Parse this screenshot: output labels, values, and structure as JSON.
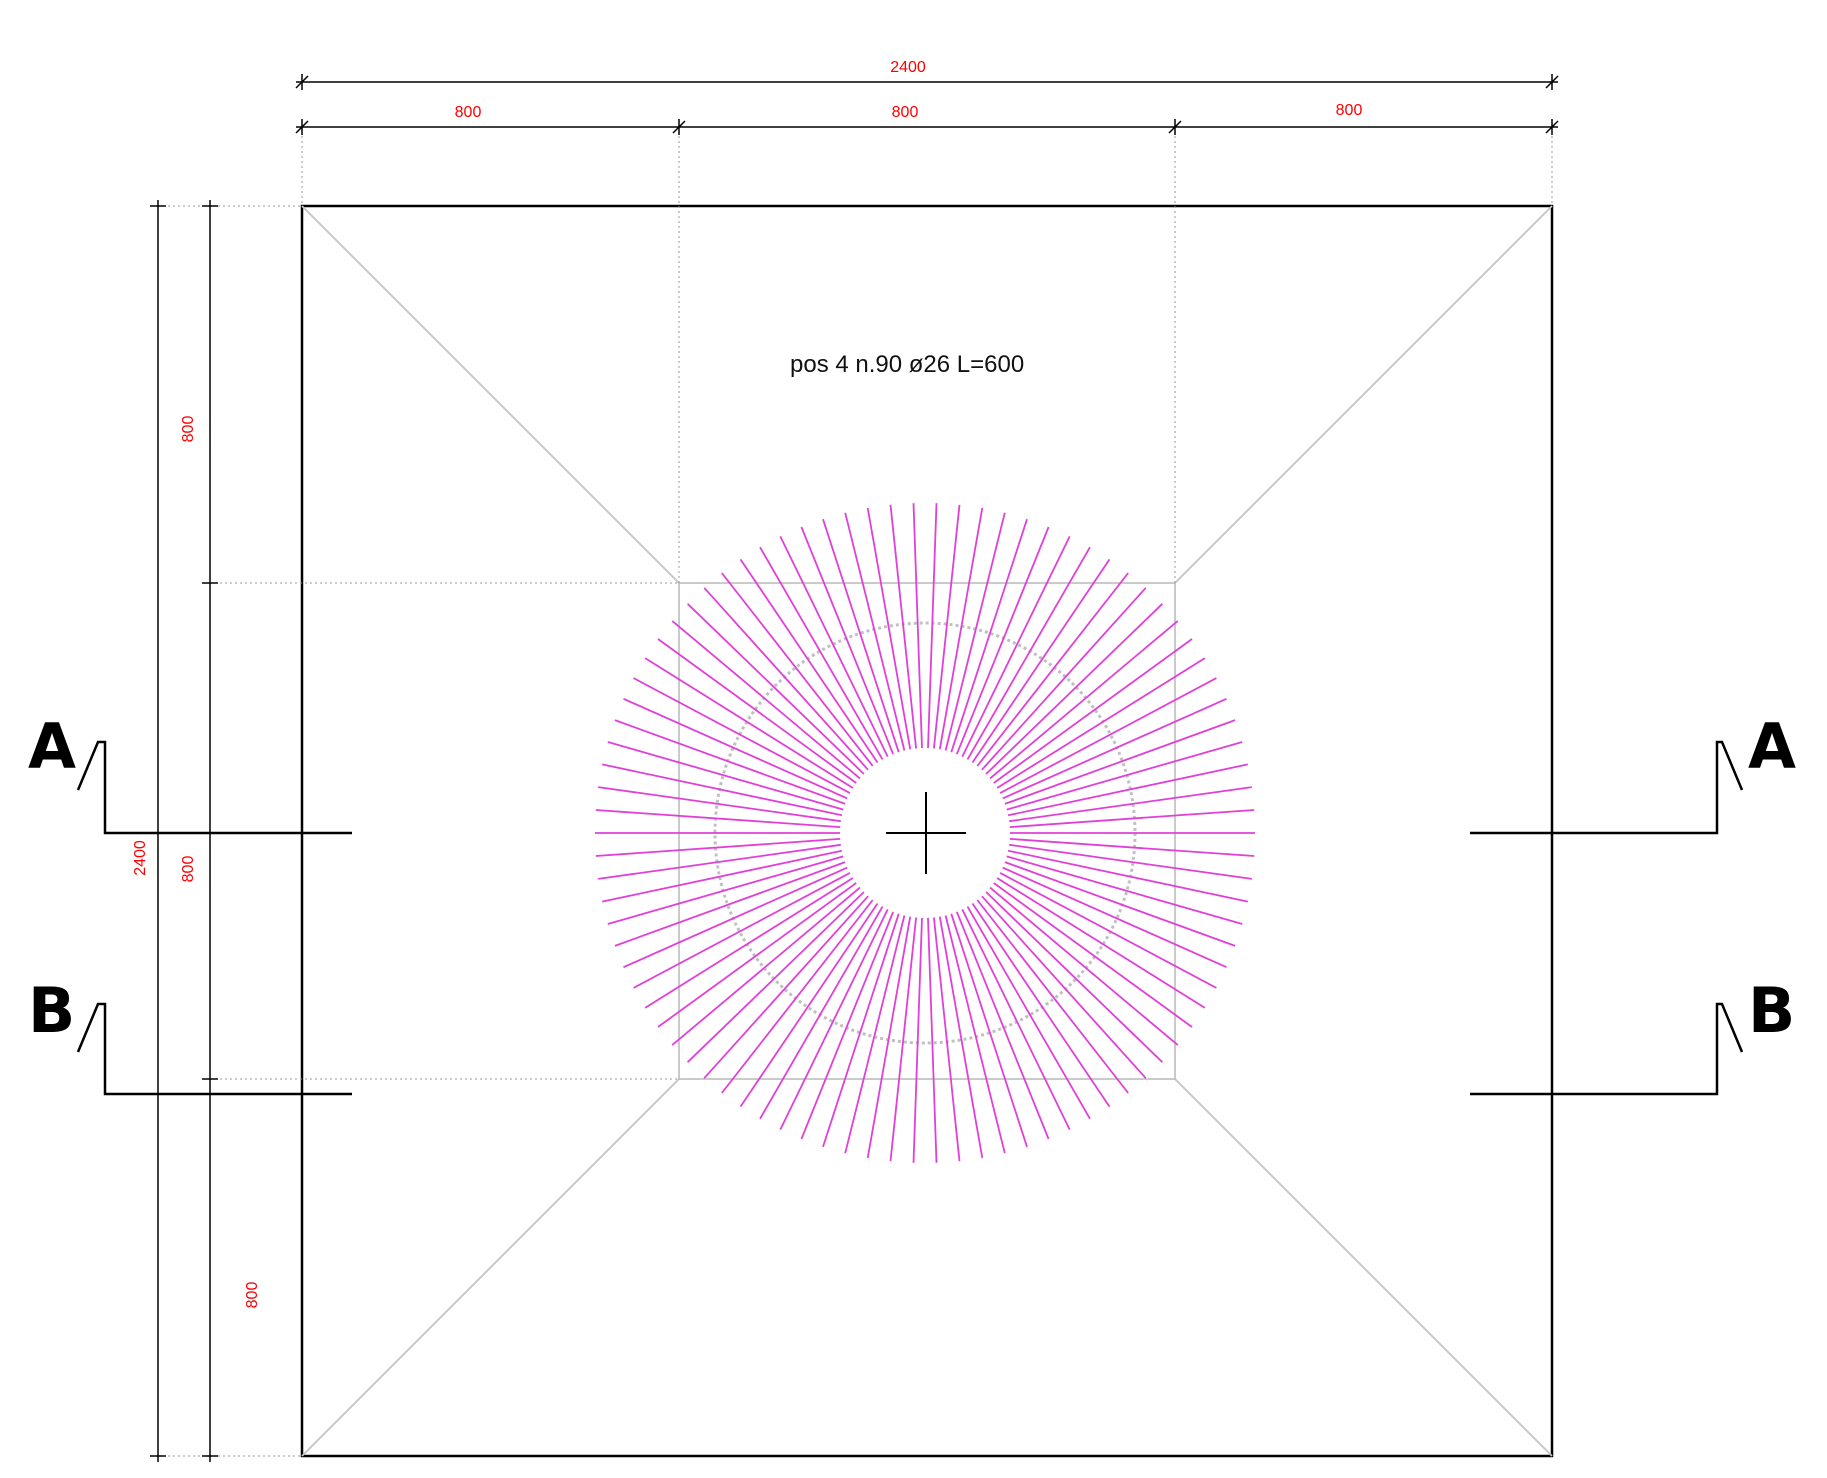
{
  "dimensions": {
    "top_total": "2400",
    "top_left": "800",
    "top_middle": "800",
    "top_right": "800",
    "left_total": "2400",
    "left_upper": "800",
    "left_middle": "800",
    "left_lower": "800"
  },
  "sections": {
    "a_left": "A",
    "a_right": "A",
    "b_left": "B",
    "b_right": "B"
  },
  "rebar_label": "pos 4  n.90  ø26  L=600",
  "rebar_count": 90,
  "colors": {
    "dimension_text": "#ff0000",
    "rebar": "#e040d8",
    "outline": "#000000",
    "construction": "#b8b8b8"
  }
}
